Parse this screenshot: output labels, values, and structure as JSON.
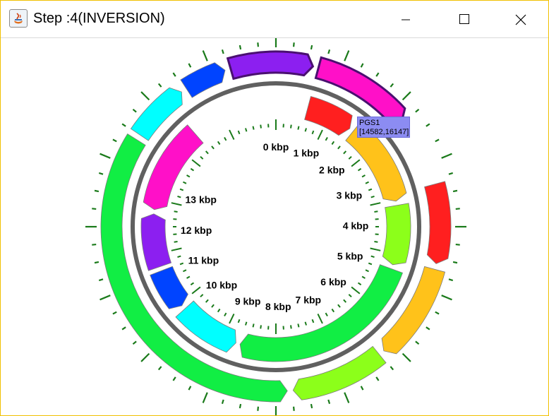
{
  "window": {
    "title": "Step :4(INVERSION)"
  },
  "controls": {
    "minimize": "minimize",
    "maximize": "maximize",
    "close": "close"
  },
  "map": {
    "total_kbp": 16.147,
    "scale_labels": [
      "0 kbp",
      "1 kbp",
      "2 kbp",
      "3 kbp",
      "4 kbp",
      "5 kbp",
      "6 kbp",
      "7 kbp",
      "8 kbp",
      "9 kbp",
      "10 kbp",
      "11 kbp",
      "12 kbp",
      "13 kbp"
    ],
    "ring_color": "#606060",
    "tick_color": "#1a7a1a",
    "inner_genes": [
      {
        "color": "#ff1f1f"
      },
      {
        "color": "#ffc21a"
      },
      {
        "color": "#8cff1a"
      },
      {
        "color": "#11ee44"
      },
      {
        "color": "#00ffff"
      },
      {
        "color": "#0044ff"
      },
      {
        "color": "#8c1ff0"
      },
      {
        "color": "#ff10c8"
      }
    ],
    "outer_genes": [
      {
        "color": "#ff1f1f"
      },
      {
        "color": "#ffc21a"
      },
      {
        "color": "#8cff1a"
      },
      {
        "color": "#11ee44"
      },
      {
        "color": "#00ffff"
      },
      {
        "color": "#0044ff"
      },
      {
        "color": "#8c1ff0"
      },
      {
        "color": "#ff10c8"
      }
    ],
    "tooltip": {
      "name": "PGS1",
      "range": "[14582,16147]"
    }
  }
}
